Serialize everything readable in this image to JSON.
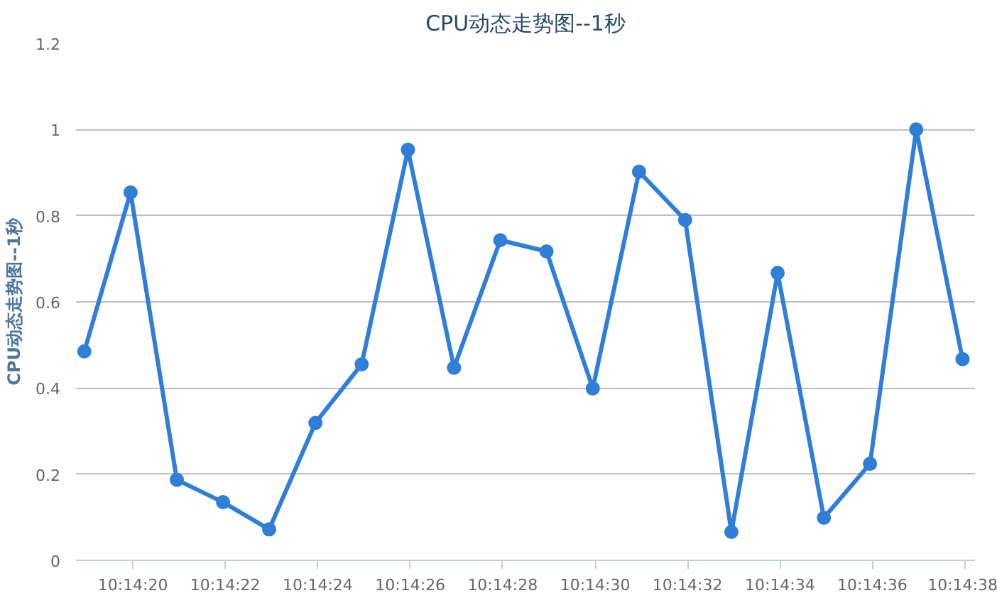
{
  "chart_data": {
    "type": "line",
    "title": "CPU动态走势图--1秒",
    "ylabel": "CPU动态走势图--1秒",
    "x": [
      10.238597,
      10.238875,
      10.239153,
      10.239431,
      10.239708,
      10.239986,
      10.240264,
      10.240542,
      10.240819,
      10.241097,
      10.241375,
      10.241653,
      10.241931,
      10.242208,
      10.242486,
      10.242764,
      10.243042,
      10.243319,
      10.243597,
      10.243875
    ],
    "series": [
      {
        "color": "#2f7ed8",
        "values": [
          0.485,
          0.854,
          0.187,
          0.135,
          0.072,
          0.319,
          0.455,
          0.953,
          0.447,
          0.743,
          0.717,
          0.399,
          0.902,
          0.79,
          0.066,
          0.667,
          0.099,
          0.224,
          1.0,
          0.467
        ]
      }
    ],
    "xlim": [
      10.238547,
      10.24395
    ],
    "xticks": [
      {
        "value": 10.238889,
        "label": "10:14:20"
      },
      {
        "value": 10.239444,
        "label": "10:14:22"
      },
      {
        "value": 10.24,
        "label": "10:14:24"
      },
      {
        "value": 10.240556,
        "label": "10:14:26"
      },
      {
        "value": 10.241111,
        "label": "10:14:28"
      },
      {
        "value": 10.241667,
        "label": "10:14:30"
      },
      {
        "value": 10.242222,
        "label": "10:14:32"
      },
      {
        "value": 10.242778,
        "label": "10:14:34"
      },
      {
        "value": 10.243333,
        "label": "10:14:36"
      },
      {
        "value": 10.243889,
        "label": "10:14:38"
      }
    ],
    "ylim": [
      0,
      1.2
    ],
    "yticks": [
      0,
      0.2,
      0.4,
      0.6,
      0.8,
      1,
      1.2
    ],
    "grid": "y",
    "marker": "circle",
    "line_style": "solid"
  }
}
